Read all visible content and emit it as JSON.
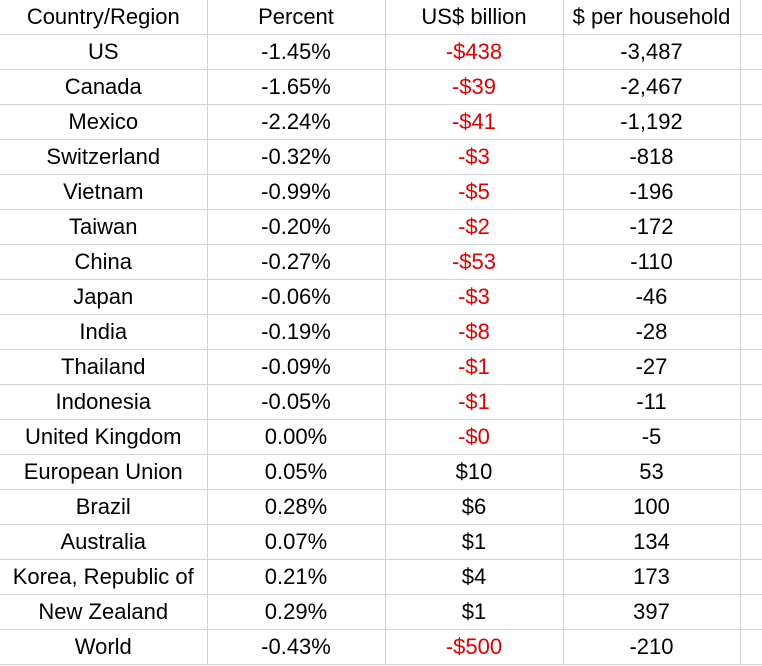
{
  "columns": [
    "Country/Region",
    "Percent",
    "US$ billion",
    "$ per household"
  ],
  "colors": {
    "negative": "#e00000",
    "text": "#000000",
    "gridline": "#d4d4d4"
  },
  "rows": [
    {
      "country": "US",
      "percent": "-1.45%",
      "usd": "-$438",
      "household": "-3,487",
      "usd_negative": true
    },
    {
      "country": "Canada",
      "percent": "-1.65%",
      "usd": "-$39",
      "household": "-2,467",
      "usd_negative": true
    },
    {
      "country": "Mexico",
      "percent": "-2.24%",
      "usd": "-$41",
      "household": "-1,192",
      "usd_negative": true
    },
    {
      "country": "Switzerland",
      "percent": "-0.32%",
      "usd": "-$3",
      "household": "-818",
      "usd_negative": true
    },
    {
      "country": "Vietnam",
      "percent": "-0.99%",
      "usd": "-$5",
      "household": "-196",
      "usd_negative": true
    },
    {
      "country": "Taiwan",
      "percent": "-0.20%",
      "usd": "-$2",
      "household": "-172",
      "usd_negative": true
    },
    {
      "country": "China",
      "percent": "-0.27%",
      "usd": "-$53",
      "household": "-110",
      "usd_negative": true
    },
    {
      "country": "Japan",
      "percent": "-0.06%",
      "usd": "-$3",
      "household": "-46",
      "usd_negative": true
    },
    {
      "country": "India",
      "percent": "-0.19%",
      "usd": "-$8",
      "household": "-28",
      "usd_negative": true
    },
    {
      "country": "Thailand",
      "percent": "-0.09%",
      "usd": "-$1",
      "household": "-27",
      "usd_negative": true
    },
    {
      "country": "Indonesia",
      "percent": "-0.05%",
      "usd": "-$1",
      "household": "-11",
      "usd_negative": true
    },
    {
      "country": "United Kingdom",
      "percent": "0.00%",
      "usd": "-$0",
      "household": "-5",
      "usd_negative": true
    },
    {
      "country": "European Union",
      "percent": "0.05%",
      "usd": "$10",
      "household": "53",
      "usd_negative": false
    },
    {
      "country": "Brazil",
      "percent": "0.28%",
      "usd": "$6",
      "household": "100",
      "usd_negative": false
    },
    {
      "country": "Australia",
      "percent": "0.07%",
      "usd": "$1",
      "household": "134",
      "usd_negative": false
    },
    {
      "country": "Korea, Republic of",
      "percent": "0.21%",
      "usd": "$4",
      "household": "173",
      "usd_negative": false
    },
    {
      "country": "New Zealand",
      "percent": "0.29%",
      "usd": "$1",
      "household": "397",
      "usd_negative": false
    },
    {
      "country": "World",
      "percent": "-0.43%",
      "usd": "-$500",
      "household": "-210",
      "usd_negative": true
    }
  ]
}
